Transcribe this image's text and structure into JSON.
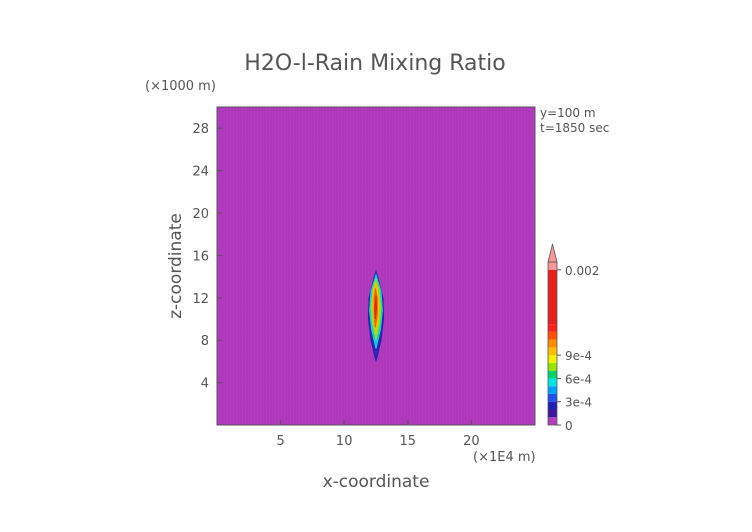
{
  "chart_data": {
    "type": "heatmap",
    "title": "H2O-l-Rain Mixing Ratio",
    "xlabel": "x-coordinate",
    "ylabel": "z-coordinate",
    "x_unit": "(×1E4 m)",
    "y_unit": "(×1000 m)",
    "annotations": [
      "y=100 m",
      "t=1850 sec"
    ],
    "xlim": [
      0,
      25
    ],
    "ylim": [
      0,
      30
    ],
    "xticks": [
      5,
      10,
      15,
      20
    ],
    "yticks": [
      4,
      8,
      12,
      16,
      20,
      24,
      28
    ],
    "grid": false,
    "background_value": 0,
    "background_color": "#b43cbe",
    "colorbar": {
      "position": "right",
      "labels": [
        "0",
        "3e-4",
        "6e-4",
        "9e-4",
        "0.002"
      ],
      "label_values": [
        0,
        0.0003,
        0.0006,
        0.0009,
        0.002
      ],
      "levels": [
        0,
        0.0001,
        0.0002,
        0.0003,
        0.0004,
        0.0005,
        0.0006,
        0.0007,
        0.0008,
        0.0009,
        0.001,
        0.0011,
        0.0012,
        0.0013,
        0.002,
        0.0021
      ],
      "colors": [
        "#b43cbe",
        "#3c14a0",
        "#1e1eb4",
        "#1e50f0",
        "#00a0ff",
        "#00e6e6",
        "#00d26e",
        "#96e600",
        "#f0f000",
        "#ffbe00",
        "#ff8c00",
        "#ff5000",
        "#ff1e1e",
        "#e61e1e",
        "#fa9696",
        "#fa9696"
      ],
      "extend": "max"
    },
    "feature": {
      "description_values": {
        "x_center": 12.5,
        "z_bottom": 6,
        "z_top": 14.5,
        "max_value": 0.0013
      },
      "contours": [
        {
          "level": 0.0001,
          "color": "#1e1eb4",
          "points": [
            [
              12.5,
              6.0
            ],
            [
              12.9,
              8.0
            ],
            [
              13.1,
              10.0
            ],
            [
              13.05,
              12.0
            ],
            [
              12.7,
              13.7
            ],
            [
              12.5,
              14.5
            ],
            [
              12.3,
              13.7
            ],
            [
              11.95,
              12.0
            ],
            [
              11.9,
              10.0
            ],
            [
              12.1,
              8.0
            ]
          ]
        },
        {
          "level": 0.0004,
          "color": "#00e6e6",
          "points": [
            [
              12.5,
              7.2
            ],
            [
              12.85,
              9.0
            ],
            [
              13.0,
              10.8
            ],
            [
              12.9,
              12.6
            ],
            [
              12.5,
              14.2
            ],
            [
              12.1,
              12.6
            ],
            [
              12.0,
              10.8
            ],
            [
              12.15,
              9.0
            ]
          ]
        },
        {
          "level": 0.0007,
          "color": "#96e600",
          "points": [
            [
              12.5,
              8.0
            ],
            [
              12.8,
              9.6
            ],
            [
              12.9,
              11.0
            ],
            [
              12.75,
              12.8
            ],
            [
              12.5,
              13.8
            ],
            [
              12.25,
              12.8
            ],
            [
              12.1,
              11.0
            ],
            [
              12.2,
              9.6
            ]
          ]
        },
        {
          "level": 0.0009,
          "color": "#ffbe00",
          "points": [
            [
              12.5,
              8.6
            ],
            [
              12.7,
              10.0
            ],
            [
              12.75,
              11.4
            ],
            [
              12.6,
              13.0
            ],
            [
              12.45,
              13.4
            ],
            [
              12.3,
              12.8
            ],
            [
              12.25,
              11.2
            ],
            [
              12.35,
              9.8
            ]
          ]
        },
        {
          "level": 0.0011,
          "color": "#ff5000",
          "points": [
            [
              12.45,
              9.2
            ],
            [
              12.6,
              10.4
            ],
            [
              12.6,
              12.0
            ],
            [
              12.45,
              12.9
            ],
            [
              12.35,
              12.0
            ],
            [
              12.35,
              10.4
            ]
          ]
        },
        {
          "level": 0.0013,
          "color": "#e61e1e",
          "points": [
            [
              12.45,
              10.0
            ],
            [
              12.55,
              11.0
            ],
            [
              12.5,
              12.2
            ],
            [
              12.4,
              11.0
            ]
          ]
        }
      ]
    }
  }
}
